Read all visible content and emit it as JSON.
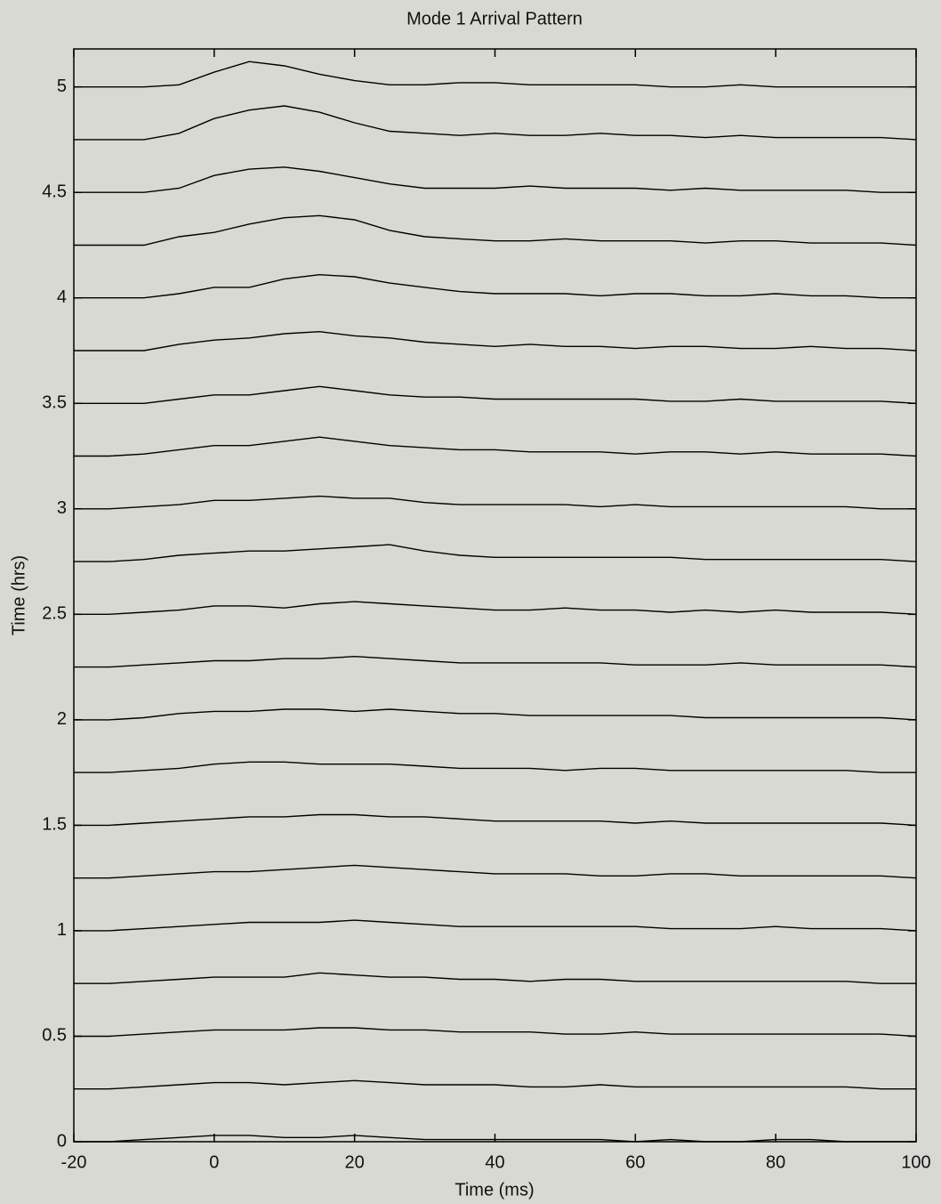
{
  "chart_data": {
    "type": "waterfall",
    "title": "Mode 1 Arrival Pattern",
    "xlabel": "Time (ms)",
    "ylabel": "Time (hrs)",
    "color": "#000000",
    "background": "#d9d9d3",
    "xlim": [
      -20,
      100
    ],
    "ylim": [
      0,
      5.18
    ],
    "xticks": [
      -20,
      0,
      20,
      40,
      60,
      80,
      100
    ],
    "yticks": [
      0,
      0.5,
      1,
      1.5,
      2,
      2.5,
      3,
      3.5,
      4,
      4.5,
      5
    ],
    "x": [
      -20,
      -15,
      -10,
      -5,
      0,
      5,
      10,
      15,
      20,
      25,
      30,
      35,
      40,
      45,
      50,
      55,
      60,
      65,
      70,
      75,
      80,
      85,
      90,
      95,
      100
    ],
    "series": [
      {
        "offset": 5.0,
        "values": [
          0,
          0,
          0,
          0.01,
          0.07,
          0.12,
          0.1,
          0.06,
          0.03,
          0.01,
          0.01,
          0.02,
          0.02,
          0.01,
          0.01,
          0.01,
          0.01,
          0.0,
          0.0,
          0.01,
          0.0,
          0.0,
          0.0,
          0.0,
          0
        ]
      },
      {
        "offset": 4.75,
        "values": [
          0,
          0,
          0,
          0.03,
          0.1,
          0.14,
          0.16,
          0.13,
          0.08,
          0.04,
          0.03,
          0.02,
          0.03,
          0.02,
          0.02,
          0.03,
          0.02,
          0.02,
          0.01,
          0.02,
          0.01,
          0.01,
          0.01,
          0.01,
          0
        ]
      },
      {
        "offset": 4.5,
        "values": [
          0,
          0,
          0,
          0.02,
          0.08,
          0.11,
          0.12,
          0.1,
          0.07,
          0.04,
          0.02,
          0.02,
          0.02,
          0.03,
          0.02,
          0.02,
          0.02,
          0.01,
          0.02,
          0.01,
          0.01,
          0.01,
          0.01,
          0.0,
          0
        ]
      },
      {
        "offset": 4.25,
        "values": [
          0,
          0,
          0,
          0.04,
          0.06,
          0.1,
          0.13,
          0.14,
          0.12,
          0.07,
          0.04,
          0.03,
          0.02,
          0.02,
          0.03,
          0.02,
          0.02,
          0.02,
          0.01,
          0.02,
          0.02,
          0.01,
          0.01,
          0.01,
          0
        ]
      },
      {
        "offset": 4.0,
        "values": [
          0,
          0,
          0,
          0.02,
          0.05,
          0.05,
          0.09,
          0.11,
          0.1,
          0.07,
          0.05,
          0.03,
          0.02,
          0.02,
          0.02,
          0.01,
          0.02,
          0.02,
          0.01,
          0.01,
          0.02,
          0.01,
          0.01,
          0.0,
          0
        ]
      },
      {
        "offset": 3.75,
        "values": [
          0,
          0,
          0,
          0.03,
          0.05,
          0.06,
          0.08,
          0.09,
          0.07,
          0.06,
          0.04,
          0.03,
          0.02,
          0.03,
          0.02,
          0.02,
          0.01,
          0.02,
          0.02,
          0.01,
          0.01,
          0.02,
          0.01,
          0.01,
          0
        ]
      },
      {
        "offset": 3.5,
        "values": [
          0,
          0,
          0,
          0.02,
          0.04,
          0.04,
          0.06,
          0.08,
          0.06,
          0.04,
          0.03,
          0.03,
          0.02,
          0.02,
          0.02,
          0.02,
          0.02,
          0.01,
          0.01,
          0.02,
          0.01,
          0.01,
          0.01,
          0.01,
          0
        ]
      },
      {
        "offset": 3.25,
        "values": [
          0,
          0,
          0.01,
          0.03,
          0.05,
          0.05,
          0.07,
          0.09,
          0.07,
          0.05,
          0.04,
          0.03,
          0.03,
          0.02,
          0.02,
          0.02,
          0.01,
          0.02,
          0.02,
          0.01,
          0.02,
          0.01,
          0.01,
          0.01,
          0
        ]
      },
      {
        "offset": 3.0,
        "values": [
          0,
          0,
          0.01,
          0.02,
          0.04,
          0.04,
          0.05,
          0.06,
          0.05,
          0.05,
          0.03,
          0.02,
          0.02,
          0.02,
          0.02,
          0.01,
          0.02,
          0.01,
          0.01,
          0.01,
          0.01,
          0.01,
          0.01,
          0.0,
          0
        ]
      },
      {
        "offset": 2.75,
        "values": [
          0,
          0,
          0.01,
          0.03,
          0.04,
          0.05,
          0.05,
          0.06,
          0.07,
          0.08,
          0.05,
          0.03,
          0.02,
          0.02,
          0.02,
          0.02,
          0.02,
          0.02,
          0.01,
          0.01,
          0.01,
          0.01,
          0.01,
          0.01,
          0
        ]
      },
      {
        "offset": 2.5,
        "values": [
          0,
          0,
          0.01,
          0.02,
          0.04,
          0.04,
          0.03,
          0.05,
          0.06,
          0.05,
          0.04,
          0.03,
          0.02,
          0.02,
          0.03,
          0.02,
          0.02,
          0.01,
          0.02,
          0.01,
          0.02,
          0.01,
          0.01,
          0.01,
          0
        ]
      },
      {
        "offset": 2.25,
        "values": [
          0,
          0,
          0.01,
          0.02,
          0.03,
          0.03,
          0.04,
          0.04,
          0.05,
          0.04,
          0.03,
          0.02,
          0.02,
          0.02,
          0.02,
          0.02,
          0.01,
          0.01,
          0.01,
          0.02,
          0.01,
          0.01,
          0.01,
          0.01,
          0
        ]
      },
      {
        "offset": 2.0,
        "values": [
          0,
          0,
          0.01,
          0.03,
          0.04,
          0.04,
          0.05,
          0.05,
          0.04,
          0.05,
          0.04,
          0.03,
          0.03,
          0.02,
          0.02,
          0.02,
          0.02,
          0.02,
          0.01,
          0.01,
          0.01,
          0.01,
          0.01,
          0.01,
          0
        ]
      },
      {
        "offset": 1.75,
        "values": [
          0,
          0,
          0.01,
          0.02,
          0.04,
          0.05,
          0.05,
          0.04,
          0.04,
          0.04,
          0.03,
          0.02,
          0.02,
          0.02,
          0.01,
          0.02,
          0.02,
          0.01,
          0.01,
          0.01,
          0.01,
          0.01,
          0.01,
          0.0,
          0
        ]
      },
      {
        "offset": 1.5,
        "values": [
          0,
          0,
          0.01,
          0.02,
          0.03,
          0.04,
          0.04,
          0.05,
          0.05,
          0.04,
          0.04,
          0.03,
          0.02,
          0.02,
          0.02,
          0.02,
          0.01,
          0.02,
          0.01,
          0.01,
          0.01,
          0.01,
          0.01,
          0.01,
          0
        ]
      },
      {
        "offset": 1.25,
        "values": [
          0,
          0,
          0.01,
          0.02,
          0.03,
          0.03,
          0.04,
          0.05,
          0.06,
          0.05,
          0.04,
          0.03,
          0.02,
          0.02,
          0.02,
          0.01,
          0.01,
          0.02,
          0.02,
          0.01,
          0.01,
          0.01,
          0.01,
          0.01,
          0
        ]
      },
      {
        "offset": 1.0,
        "values": [
          0,
          0,
          0.01,
          0.02,
          0.03,
          0.04,
          0.04,
          0.04,
          0.05,
          0.04,
          0.03,
          0.02,
          0.02,
          0.02,
          0.02,
          0.02,
          0.02,
          0.01,
          0.01,
          0.01,
          0.02,
          0.01,
          0.01,
          0.01,
          0
        ]
      },
      {
        "offset": 0.75,
        "values": [
          0,
          0,
          0.01,
          0.02,
          0.03,
          0.03,
          0.03,
          0.05,
          0.04,
          0.03,
          0.03,
          0.02,
          0.02,
          0.01,
          0.02,
          0.02,
          0.01,
          0.01,
          0.01,
          0.01,
          0.01,
          0.01,
          0.01,
          0.0,
          0
        ]
      },
      {
        "offset": 0.5,
        "values": [
          0,
          0,
          0.01,
          0.02,
          0.03,
          0.03,
          0.03,
          0.04,
          0.04,
          0.03,
          0.03,
          0.02,
          0.02,
          0.02,
          0.01,
          0.01,
          0.02,
          0.01,
          0.01,
          0.01,
          0.01,
          0.01,
          0.01,
          0.01,
          0
        ]
      },
      {
        "offset": 0.25,
        "values": [
          0,
          0,
          0.01,
          0.02,
          0.03,
          0.03,
          0.02,
          0.03,
          0.04,
          0.03,
          0.02,
          0.02,
          0.02,
          0.01,
          0.01,
          0.02,
          0.01,
          0.01,
          0.01,
          0.01,
          0.01,
          0.01,
          0.01,
          0.0,
          0
        ]
      },
      {
        "offset": 0.0,
        "values": [
          0,
          0,
          0.01,
          0.02,
          0.03,
          0.03,
          0.02,
          0.02,
          0.03,
          0.02,
          0.01,
          0.01,
          0.01,
          0.01,
          0.01,
          0.01,
          0.0,
          0.01,
          0.0,
          0.0,
          0.01,
          0.01,
          0.0,
          0.0,
          0
        ]
      }
    ]
  }
}
